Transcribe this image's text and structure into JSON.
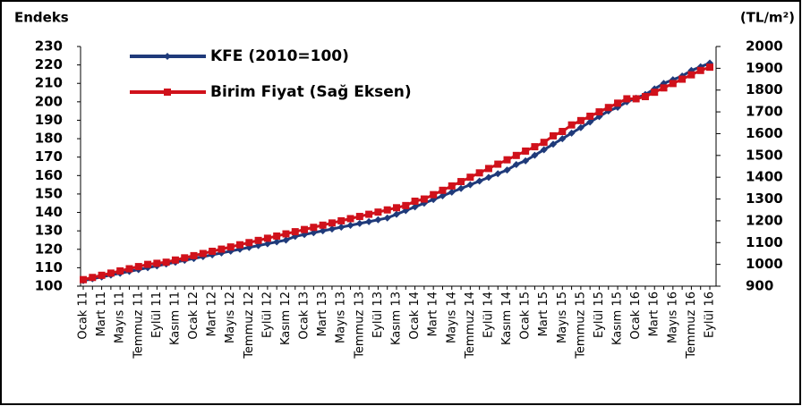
{
  "chart_data": {
    "type": "line",
    "y_label": "Endeks",
    "y2_label": "(TL/m²)",
    "categories": [
      "Ocak 11",
      null,
      "Mart 11",
      null,
      "Mayıs 11",
      null,
      "Temmuz 11",
      null,
      "Eylül 11",
      null,
      "Kasım 11",
      null,
      "Ocak 12",
      null,
      "Mart 12",
      null,
      "Mayıs 12",
      null,
      "Temmuz 12",
      null,
      "Eylül 12",
      null,
      "Kasım 12",
      null,
      "Ocak 13",
      null,
      "Mart 13",
      null,
      "Mayıs 13",
      null,
      "Temmuz 13",
      null,
      "Eylül 13",
      null,
      "Kasım 13",
      null,
      "Ocak 14",
      null,
      "Mart 14",
      null,
      "Mayıs 14",
      null,
      "Temmuz 14",
      null,
      "Eylül 14",
      null,
      "Kasım 14",
      null,
      "Ocak 15",
      null,
      "Mart 15",
      null,
      "Mayıs 15",
      null,
      "Temmuz 15",
      null,
      "Eylül 15",
      null,
      "Kasım 15",
      null,
      "Ocak 16",
      null,
      "Mart 16",
      null,
      "Mayıs 16",
      null,
      "Temmuz 16",
      null,
      "Eylül 16"
    ],
    "series": [
      {
        "name": "KFE (2010=100)",
        "color": "#1f3a7a",
        "marker": "diamond",
        "values": [
          103,
          104,
          105,
          106,
          107,
          108,
          109,
          110,
          111,
          112,
          113,
          114,
          115,
          116,
          117,
          118,
          119,
          120,
          121,
          122,
          123,
          124,
          125,
          127,
          128,
          129,
          130,
          131,
          132,
          133,
          134,
          135,
          136,
          137,
          139,
          141,
          143,
          145,
          147,
          149,
          151,
          153,
          155,
          157,
          159,
          161,
          163,
          166,
          168,
          171,
          174,
          177,
          180,
          183,
          186,
          189,
          192,
          195,
          197,
          200,
          202,
          204,
          207,
          210,
          212,
          214,
          217,
          219,
          221
        ]
      },
      {
        "name": "Birim Fiyat (Sağ Eksen)",
        "color": "#d0111b",
        "marker": "square",
        "axis": "y2",
        "values": [
          930,
          940,
          950,
          960,
          970,
          980,
          990,
          1000,
          1005,
          1010,
          1020,
          1030,
          1040,
          1050,
          1060,
          1070,
          1080,
          1090,
          1100,
          1110,
          1120,
          1130,
          1140,
          1150,
          1160,
          1170,
          1180,
          1190,
          1200,
          1210,
          1220,
          1230,
          1240,
          1250,
          1260,
          1270,
          1290,
          1300,
          1320,
          1340,
          1360,
          1380,
          1400,
          1420,
          1440,
          1460,
          1480,
          1500,
          1520,
          1540,
          1560,
          1590,
          1610,
          1640,
          1660,
          1680,
          1700,
          1720,
          1740,
          1760,
          1760,
          1770,
          1790,
          1810,
          1830,
          1850,
          1870,
          1890,
          1905
        ]
      }
    ],
    "ylim": [
      100,
      230
    ],
    "yticks": [
      100,
      110,
      120,
      130,
      140,
      150,
      160,
      170,
      180,
      190,
      200,
      210,
      220,
      230
    ],
    "y2lim": [
      900,
      2000
    ],
    "y2ticks": [
      900,
      1000,
      1100,
      1200,
      1300,
      1400,
      1500,
      1600,
      1700,
      1800,
      1900,
      2000
    ],
    "grid": false
  }
}
